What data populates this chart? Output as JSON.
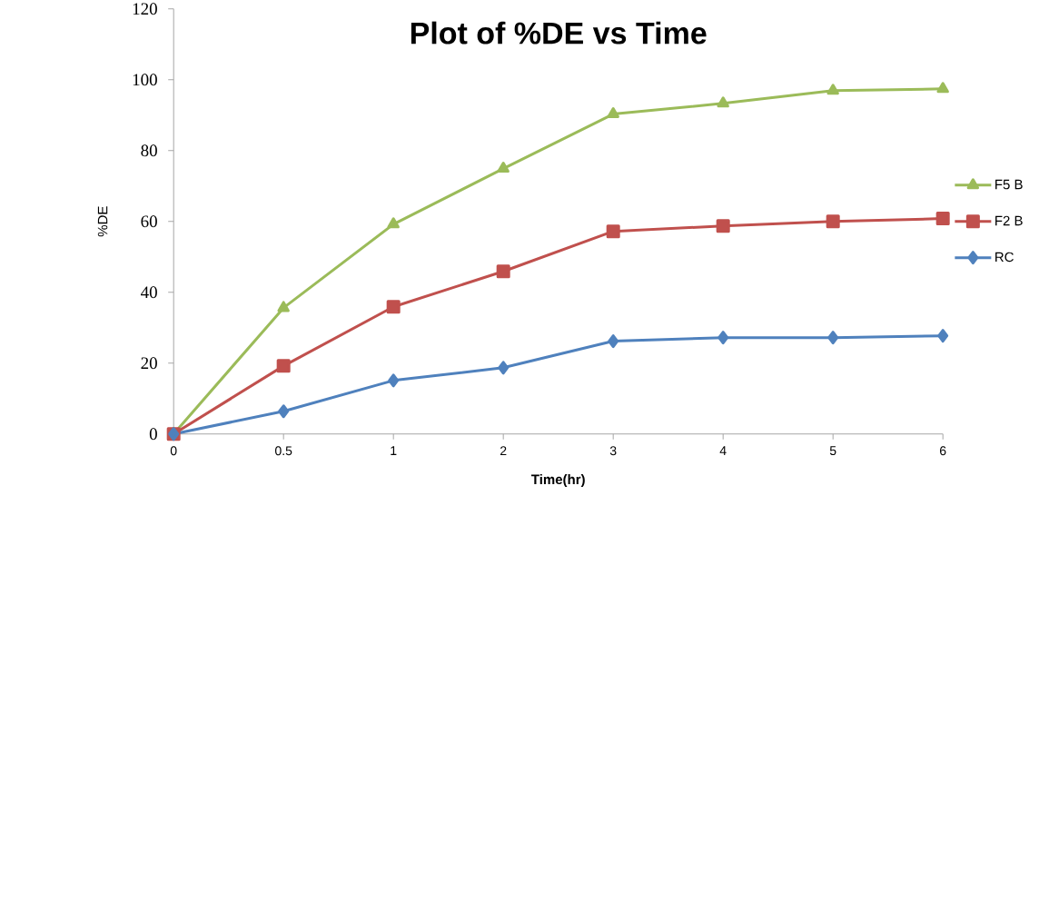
{
  "chart_data": {
    "type": "line",
    "title": "Plot of %DE vs Time",
    "xlabel": "Time(hr)",
    "ylabel": "%DE",
    "categories": [
      "0",
      "0.5",
      "1",
      "2",
      "3",
      "4",
      "5",
      "6"
    ],
    "series": [
      {
        "name": "F5 B",
        "color": "#9bbb59",
        "marker": "triangle",
        "values": [
          0,
          35.6,
          59.2,
          74.9,
          90.3,
          93.3,
          96.9,
          97.4
        ]
      },
      {
        "name": "F2 B",
        "color": "#c0504d",
        "marker": "square",
        "values": [
          0,
          19.2,
          35.9,
          45.9,
          57.2,
          58.7,
          60.0,
          60.8
        ]
      },
      {
        "name": "RC",
        "color": "#4f81bd",
        "marker": "diamond",
        "values": [
          0,
          6.4,
          15.1,
          18.7,
          26.2,
          27.2,
          27.2,
          27.7
        ]
      }
    ],
    "ylim": [
      0,
      120
    ],
    "yticks": [
      0,
      20,
      40,
      60,
      80,
      100,
      120
    ],
    "grid": false,
    "legend": "right",
    "line_style": "solid"
  }
}
